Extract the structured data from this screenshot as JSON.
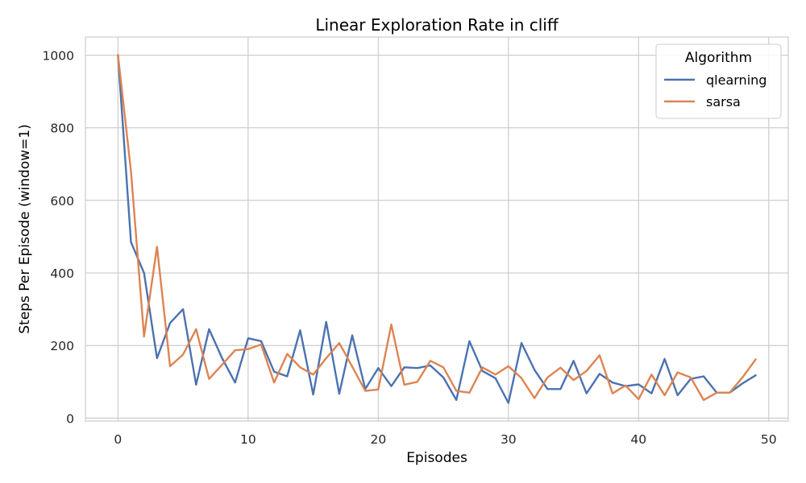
{
  "chart_data": {
    "type": "line",
    "title": "Linear Exploration Rate in cliff",
    "xlabel": "Episodes",
    "ylabel": "Steps Per Episode (window=1)",
    "xlim": [
      -2.5,
      51.5
    ],
    "ylim": [
      -8,
      1050
    ],
    "xticks": [
      0,
      10,
      20,
      30,
      40,
      50
    ],
    "yticks": [
      0,
      200,
      400,
      600,
      800,
      1000
    ],
    "xtick_labels": [
      "0",
      "10",
      "20",
      "30",
      "40",
      "50"
    ],
    "ytick_labels": [
      "0",
      "200",
      "400",
      "600",
      "800",
      "1000"
    ],
    "grid": true,
    "legend": {
      "title": "Algorithm",
      "position": "top-right"
    },
    "x": [
      0,
      1,
      2,
      3,
      4,
      5,
      6,
      7,
      8,
      9,
      10,
      11,
      12,
      13,
      14,
      15,
      16,
      17,
      18,
      19,
      20,
      21,
      22,
      23,
      24,
      25,
      26,
      27,
      28,
      29,
      30,
      31,
      32,
      33,
      34,
      35,
      36,
      37,
      38,
      39,
      40,
      41,
      42,
      43,
      44,
      45,
      46,
      47,
      48,
      49
    ],
    "series": [
      {
        "name": "qlearning",
        "color": "#4c72b0",
        "values": [
          1000,
          485,
          400,
          165,
          262,
          300,
          92,
          245,
          165,
          98,
          220,
          212,
          128,
          115,
          242,
          65,
          265,
          67,
          228,
          80,
          138,
          88,
          140,
          138,
          145,
          112,
          50,
          212,
          130,
          110,
          42,
          207,
          133,
          80,
          80,
          158,
          68,
          122,
          98,
          88,
          93,
          68,
          163,
          63,
          108,
          115,
          70,
          70,
          96,
          118
        ]
      },
      {
        "name": "sarsa",
        "color": "#dd8452",
        "values": [
          1000,
          680,
          225,
          472,
          143,
          175,
          245,
          108,
          147,
          187,
          190,
          203,
          98,
          177,
          140,
          120,
          165,
          207,
          142,
          75,
          79,
          258,
          92,
          100,
          158,
          140,
          75,
          70,
          140,
          120,
          143,
          110,
          55,
          112,
          139,
          105,
          130,
          173,
          68,
          90,
          52,
          120,
          63,
          126,
          112,
          50,
          70,
          70,
          113,
          162
        ]
      }
    ]
  }
}
